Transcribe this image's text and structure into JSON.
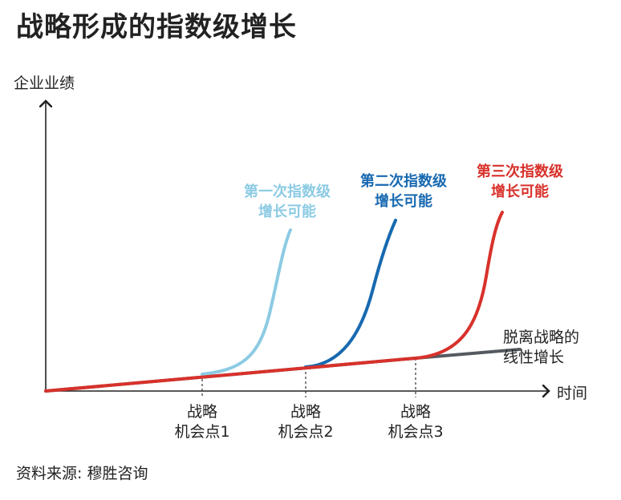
{
  "title": "战略形成的指数级增长",
  "source": "资料来源: 穆胜咨询",
  "chart_data": {
    "type": "line",
    "ylabel": "企业业绩",
    "xlabel": "时间",
    "opportunities": [
      {
        "line1": "战略",
        "line2": "机会点1",
        "x": 1
      },
      {
        "line1": "战略",
        "line2": "机会点2",
        "x": 2
      },
      {
        "line1": "战略",
        "line2": "机会点3",
        "x": 3
      }
    ],
    "series": [
      {
        "name": "脱离战略的线性增长",
        "label_lines": [
          "脱离战略的",
          "线性增长"
        ],
        "color": "#555a60",
        "type": "linear"
      },
      {
        "name": "第一次指数级增长可能",
        "label_lines": [
          "第一次指数级",
          "增长可能"
        ],
        "color": "#8ccbe3",
        "start": 1,
        "type": "exponential"
      },
      {
        "name": "第二次指数级增长可能",
        "label_lines": [
          "第二次指数级",
          "增长可能"
        ],
        "color": "#1769b0",
        "start": 2,
        "type": "exponential"
      },
      {
        "name": "第三次指数级增长可能",
        "label_lines": [
          "第三次指数级",
          "增长可能"
        ],
        "color": "#d8312b",
        "start": 3,
        "type": "exponential"
      }
    ]
  }
}
